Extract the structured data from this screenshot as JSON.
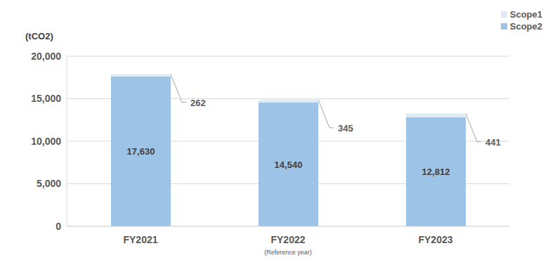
{
  "chart_data": {
    "type": "bar",
    "stacked": true,
    "ylabel": "(tCO2)",
    "categories": [
      "FY2021",
      "FY2022",
      "FY2023"
    ],
    "annotations": [
      {
        "category": "FY2022",
        "text": "(Reference year)"
      }
    ],
    "series": [
      {
        "name": "Scope2",
        "color": "#9dc3e6",
        "values": [
          17630,
          14540,
          12812
        ],
        "value_labels": [
          "17,630",
          "14,540",
          "12,812"
        ]
      },
      {
        "name": "Scope1",
        "color": "#deebf7",
        "values": [
          262,
          345,
          441
        ]
      }
    ],
    "ylim": [
      0,
      20000
    ],
    "yticks": [
      0,
      {
        "value": 5000,
        "label": "5,000"
      },
      {
        "value": 10000,
        "label": "10,000"
      },
      {
        "value": 15000,
        "label": "15,000"
      },
      {
        "value": 20000,
        "label": "20,000"
      }
    ],
    "grid": true,
    "data_labels": true,
    "legend": "upper right"
  }
}
